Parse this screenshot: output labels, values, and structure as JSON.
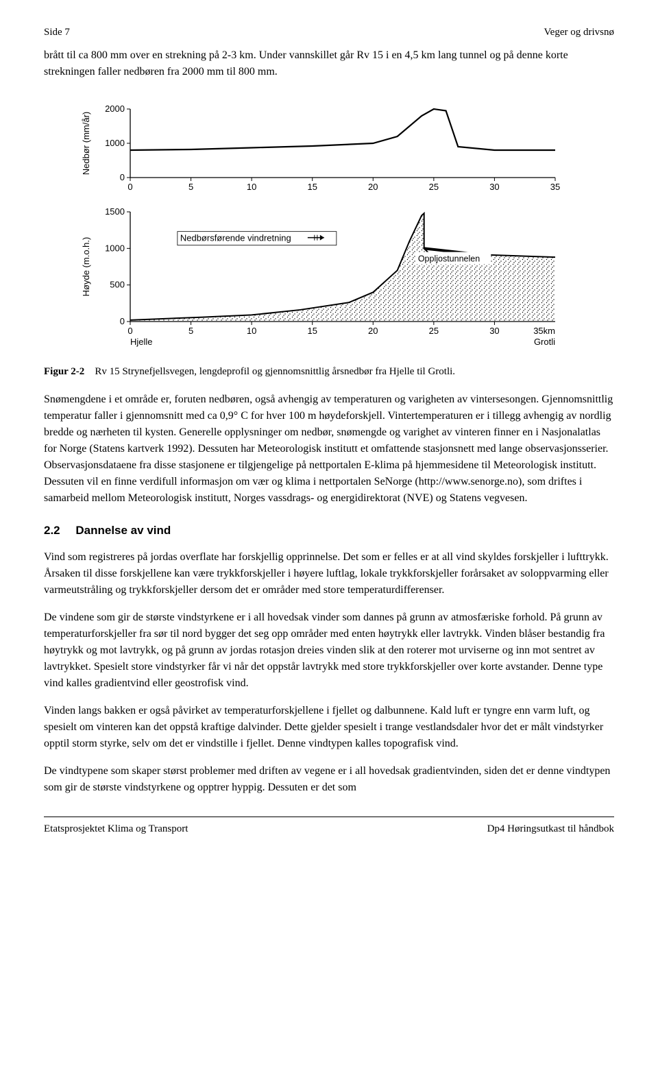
{
  "header": {
    "left": "Side 7",
    "right": "Veger og drivsnø"
  },
  "intro": "brått til ca 800 mm over en strekning på 2-3 km. Under vannskillet går Rv 15 i en 4,5 km lang tunnel og på denne korte strekningen faller nedbøren fra 2000 mm til 800 mm.",
  "figure": {
    "caption_label": "Figur 2-2",
    "caption_text": "Rv 15 Strynefjellsvegen, lengdeprofil og gjennomsnittlig årsnedbør fra Hjelle til Grotli.",
    "top_chart": {
      "y_label": "Nedbør (mm/år)",
      "y_ticks": [
        0,
        1000,
        2000
      ],
      "x_ticks": [
        0,
        5,
        10,
        15,
        20,
        25,
        30,
        35
      ],
      "series_x": [
        0,
        5,
        10,
        15,
        20,
        22,
        24,
        25,
        26,
        27,
        30,
        35
      ],
      "series_y": [
        800,
        820,
        870,
        920,
        1000,
        1200,
        1800,
        2000,
        1950,
        900,
        800,
        800
      ],
      "line_color": "#000000",
      "line_width": 2.2
    },
    "bottom_chart": {
      "y_label": "Høyde (m.o.h.)",
      "y_ticks": [
        0,
        500,
        1000,
        1500
      ],
      "x_ticks": [
        0,
        5,
        10,
        15,
        20,
        25,
        30
      ],
      "x_end_label": "35km",
      "arrow_label": "Nedbørsførende vindretning",
      "tunnel_label": "Oppljostunnelen",
      "left_label": "Hjelle",
      "right_label": "Grotli",
      "terrain_x": [
        0,
        3,
        6,
        10,
        14,
        18,
        20,
        22,
        23,
        24,
        24.2,
        24.2,
        24.8,
        28,
        35
      ],
      "terrain_y": [
        20,
        40,
        60,
        90,
        160,
        260,
        400,
        700,
        1100,
        1450,
        1480,
        1000,
        900,
        920,
        880
      ],
      "tunnel_line_x": [
        24.2,
        28.5
      ],
      "tunnel_line_y": [
        1000,
        920
      ],
      "line_color": "#000000",
      "fill_pattern": "stipple"
    }
  },
  "para1": "Snømengdene i et område er, foruten nedbøren, også avhengig av temperaturen og varigheten av vintersesongen. Gjennomsnittlig temperatur faller i gjennomsnitt med ca 0,9° C for hver 100 m høydeforskjell. Vintertemperaturen er i tillegg avhengig av nordlig bredde og nærheten til kysten. Generelle opplysninger om nedbør, snømengde og varighet av vinteren finner en i Nasjonalatlas for Norge (Statens kartverk 1992). Dessuten har Meteorologisk institutt et omfattende stasjonsnett med lange observasjonsserier. Observasjonsdataene fra disse stasjonene er tilgjengelige på nettportalen E-klima på hjemmesidene til Meteorologisk institutt. Dessuten vil en finne verdifull informasjon om vær og klima i nettportalen SeNorge (http://www.senorge.no), som driftes i samarbeid mellom Meteorologisk institutt, Norges vassdrags- og energidirektorat (NVE) og Statens vegvesen.",
  "section": {
    "num": "2.2",
    "title": "Dannelse av vind"
  },
  "para2": "Vind som registreres på jordas overflate har forskjellig opprinnelse. Det som er felles er at all vind skyldes forskjeller i lufttrykk. Årsaken til disse forskjellene kan være trykkforskjeller i høyere luftlag, lokale trykkforskjeller forårsaket av soloppvarming eller varmeutstråling og trykkforskjeller dersom det er områder med store temperaturdifferenser.",
  "para3": "De vindene som gir de største vindstyrkene er i all hovedsak vinder som dannes på grunn av atmosfæriske forhold. På grunn av temperaturforskjeller fra sør til nord bygger det seg opp områder med enten høytrykk eller lavtrykk. Vinden blåser bestandig fra høytrykk og mot lavtrykk, og på grunn av jordas rotasjon dreies vinden slik at den roterer mot urviserne og inn mot sentret av lavtrykket. Spesielt store vindstyrker får vi når det oppstår lavtrykk med store trykkforskjeller over korte avstander. Denne type vind kalles gradientvind eller geostrofisk vind.",
  "para4": "Vinden langs bakken er også påvirket av temperaturforskjellene i fjellet og dalbunnene. Kald luft er tyngre enn varm luft, og spesielt om vinteren kan det oppstå kraftige dalvinder. Dette gjelder spesielt i trange vestlandsdaler hvor det er målt vindstyrker opptil storm styrke, selv om det er vindstille i fjellet. Denne vindtypen kalles topografisk vind.",
  "para5": "De vindtypene som skaper størst problemer med driften av vegene er i all hovedsak gradientvinden, siden det er denne vindtypen som gir de største vindstyrkene og opptrer hyppig. Dessuten er det som",
  "footer": {
    "left": "Etatsprosjektet Klima og Transport",
    "right": "Dp4 Høringsutkast til håndbok"
  }
}
